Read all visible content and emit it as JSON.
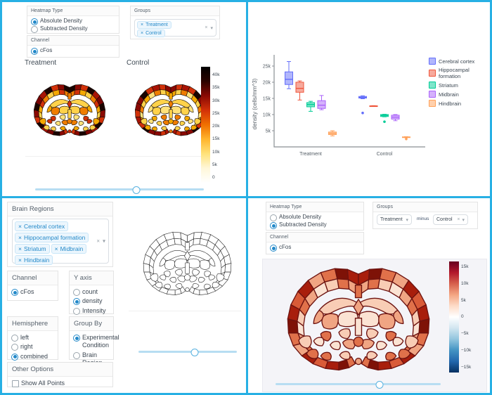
{
  "colors": {
    "frame": "#27b0e4",
    "accent_blue": "#2389c9",
    "tag_bg": "#ecf6fd",
    "tag_border": "#c9e6f8",
    "panel_border": "#e4e4e4",
    "text": "#3c4752",
    "slider_track": "#b7ddf2",
    "slider_handle_border": "#58b2e0",
    "axis_gray": "#8a8f94"
  },
  "chart_data": {
    "type": "box",
    "title": "",
    "xlabel": "",
    "ylabel": "density (cells/mm^3)",
    "categories": [
      "Treatment",
      "Control"
    ],
    "ytick_vals": [
      5000,
      10000,
      15000,
      20000,
      25000
    ],
    "ytick_labels": [
      "5k",
      "10k",
      "15k",
      "20k",
      "25k"
    ],
    "ylim": [
      0,
      27500
    ],
    "grid": false,
    "legend_position": "right",
    "series": [
      {
        "name": "Cerebral cortex",
        "color": "#636EFA",
        "boxes": [
          {
            "low": 18000,
            "q1": 19300,
            "median": 20900,
            "q3": 23200,
            "high": 26400,
            "outliers": []
          },
          {
            "low": 14900,
            "q1": 15100,
            "median": 15300,
            "q3": 15600,
            "high": 15800,
            "outliers": [
              10500
            ]
          }
        ]
      },
      {
        "name": "Hippocampal formation",
        "color": "#EF553B",
        "boxes": [
          {
            "low": 14500,
            "q1": 16900,
            "median": 18100,
            "q3": 20000,
            "high": 20400,
            "outliers": []
          },
          {
            "low": 12500,
            "q1": 12550,
            "median": 12600,
            "q3": 12700,
            "high": 12750,
            "outliers": []
          }
        ]
      },
      {
        "name": "Striatum",
        "color": "#00CC96",
        "boxes": [
          {
            "low": 11000,
            "q1": 12400,
            "median": 13100,
            "q3": 13700,
            "high": 14100,
            "outliers": []
          },
          {
            "low": 9300,
            "q1": 9400,
            "median": 9700,
            "q3": 10000,
            "high": 10100,
            "outliers": [
              7800
            ]
          }
        ]
      },
      {
        "name": "Midbrain",
        "color": "#AB63FA",
        "boxes": [
          {
            "low": 11500,
            "q1": 11900,
            "median": 12900,
            "q3": 14300,
            "high": 15900,
            "outliers": []
          },
          {
            "low": 8100,
            "q1": 8600,
            "median": 9200,
            "q3": 9800,
            "high": 10000,
            "outliers": []
          }
        ]
      },
      {
        "name": "Hindbrain",
        "color": "#FFA15A",
        "boxes": [
          {
            "low": 3400,
            "q1": 3800,
            "median": 4200,
            "q3": 4600,
            "high": 5000,
            "outliers": []
          },
          {
            "low": 2900,
            "q1": 2950,
            "median": 3000,
            "q3": 3100,
            "high": 3150,
            "outliers": [
              2450
            ]
          }
        ]
      }
    ]
  },
  "q1": {
    "heatmap_type": {
      "header": "Heatmap Type",
      "options": [
        {
          "label": "Absolute Density",
          "selected": true
        },
        {
          "label": "Subtracted Density",
          "selected": false
        }
      ]
    },
    "groups": {
      "header": "Groups",
      "tags": [
        "Treatment",
        "Control"
      ],
      "clear_icon": "×",
      "caret_icon": "▾"
    },
    "channel": {
      "header": "Channel",
      "options": [
        {
          "label": "cFos",
          "selected": true
        }
      ]
    },
    "plot": {
      "left_title": "Treatment",
      "right_title": "Control",
      "colorbar_ticks": [
        "40k",
        "35k",
        "30k",
        "25k",
        "20k",
        "15k",
        "10k",
        "5k",
        "0"
      ],
      "colorbar_colors": [
        "#000000",
        "#2b0300",
        "#8a0903",
        "#d23109",
        "#f07000",
        "#ffb52e",
        "#ffe27a",
        "#fff7d9",
        "#ffffff"
      ],
      "slider_pct": 60
    }
  },
  "q3": {
    "brain_regions": {
      "header": "Brain Regions",
      "tags": [
        "Cerebral cortex",
        "Hippocampal formation",
        "Striatum",
        "Midbrain",
        "Hindbrain"
      ],
      "clear_icon": "×",
      "caret_icon": "▾"
    },
    "channel": {
      "header": "Channel",
      "options": [
        {
          "label": "cFos",
          "selected": true
        }
      ]
    },
    "y_axis": {
      "header": "Y axis",
      "options": [
        {
          "label": "count",
          "selected": false
        },
        {
          "label": "density",
          "selected": true
        },
        {
          "label": "Intensity",
          "selected": false
        }
      ]
    },
    "hemisphere": {
      "header": "Hemisphere",
      "options": [
        {
          "label": "left",
          "selected": false
        },
        {
          "label": "right",
          "selected": false
        },
        {
          "label": "combined",
          "selected": true
        }
      ]
    },
    "group_by": {
      "header": "Group By",
      "options": [
        {
          "label": "Experimental Condition",
          "selected": true
        },
        {
          "label": "Brain Region",
          "selected": false
        }
      ]
    },
    "other_options": {
      "header": "Other Options",
      "checkbox": {
        "label": "Show All Points",
        "checked": false
      }
    },
    "slider_pct": 57
  },
  "q4": {
    "heatmap_type": {
      "header": "Heatmap Type",
      "options": [
        {
          "label": "Absolute Density",
          "selected": false
        },
        {
          "label": "Subtracted Density",
          "selected": true
        }
      ]
    },
    "groups": {
      "header": "Groups",
      "select_a": "Treatment",
      "minus_label": "minus",
      "select_b": "Control",
      "clear_icon": "×",
      "caret_icon": "▾"
    },
    "channel": {
      "header": "Channel",
      "options": [
        {
          "label": "cFos",
          "selected": true
        }
      ]
    },
    "plot": {
      "colorbar_ticks": [
        "15k",
        "10k",
        "5k",
        "0",
        "−5k",
        "−10k",
        "−15k"
      ],
      "colorbar_colors": [
        "#67001f",
        "#b2182b",
        "#d6604d",
        "#f4a582",
        "#fddbc7",
        "#ffffff",
        "#d1e5f0",
        "#92c5de",
        "#4393c3",
        "#2166ac",
        "#053061"
      ],
      "slider_pct": 63
    }
  },
  "brain_palettes": {
    "absolute_treatment": {
      "stroke": "#140b06",
      "outer": [
        "#1a0400",
        "#8a0903",
        "#d23109",
        "#1a0400",
        "#a81405",
        "#7a0403"
      ],
      "inner": [
        "#ef7d00",
        "#d23109",
        "#f5a800",
        "#ffd24a"
      ],
      "hippo": [
        "#ffd24a",
        "#f5a800",
        "#ef7d00"
      ],
      "central": [
        "#ffd24a",
        "#ef7d00",
        "#d23109",
        "#ffe27a",
        "#f5a800"
      ],
      "ventral": [
        "#f5a800",
        "#ffd24a",
        "#d23109",
        "#ef7d00",
        "#ffe27a"
      ],
      "midline": [
        "#ef7d00",
        "#d23109",
        "#ffd24a"
      ]
    },
    "absolute_control": {
      "stroke": "#140b06",
      "outer": [
        "#8a0903",
        "#d23109",
        "#a81405",
        "#d23109",
        "#1a0400",
        "#8a0903"
      ],
      "inner": [
        "#f5a800",
        "#ffd24a",
        "#ef7d00",
        "#ffe27a"
      ],
      "hippo": [
        "#ffd24a",
        "#ffe27a"
      ],
      "central": [
        "#ffe27a",
        "#ffd24a",
        "#f5a800",
        "#ef7d00",
        "#ffd24a"
      ],
      "ventral": [
        "#ffd24a",
        "#f5a800",
        "#ffe27a",
        "#ef7d00",
        "#ffd24a"
      ],
      "midline": [
        "#f5a800",
        "#ef7d00",
        "#ffd24a"
      ]
    },
    "outline": {
      "stroke": "#2b2b2b",
      "outer": [
        "#ffffff"
      ],
      "inner": [
        "#ffffff"
      ],
      "hippo": [
        "#ffffff"
      ],
      "central": [
        "#ffffff"
      ],
      "ventral": [
        "#ffffff"
      ],
      "midline": [
        "#ffffff"
      ]
    },
    "subtracted": {
      "stroke": "#6d1310",
      "outer": [
        "#a81e0c",
        "#7e1207",
        "#e0714a",
        "#f0a583",
        "#a81e0c",
        "#d95b38"
      ],
      "inner": [
        "#f0a583",
        "#e0714a",
        "#f8cdb5",
        "#fbe3d3"
      ],
      "hippo": [
        "#f8cdb5",
        "#f0a583"
      ],
      "central": [
        "#fbe3d3",
        "#f0a583",
        "#e0714a",
        "#f8cdb5",
        "#fbe3d3"
      ],
      "ventral": [
        "#f8cdb5",
        "#e0714a",
        "#fbe3d3",
        "#f0a583",
        "#fbe3d3"
      ],
      "midline": [
        "#e0714a",
        "#f0a583",
        "#fbe3d3"
      ]
    }
  }
}
